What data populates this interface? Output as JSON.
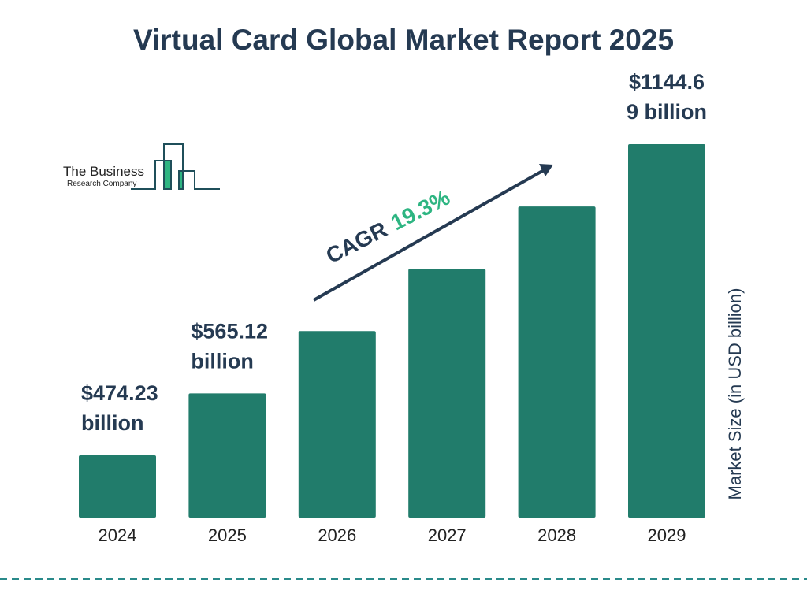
{
  "chart_data": {
    "type": "bar",
    "title": "Virtual Card Global Market Report 2025",
    "categories": [
      "2024",
      "2025",
      "2026",
      "2027",
      "2028",
      "2029"
    ],
    "values": [
      474.23,
      565.12,
      674.2,
      804.3,
      959.5,
      1144.69
    ],
    "data_labels": [
      [
        "$474.23",
        "billion"
      ],
      [
        "$565.12",
        "billion"
      ],
      null,
      null,
      null,
      [
        "$1144.6",
        "9 billion"
      ]
    ],
    "ylabel": "Market Size (in USD billion)",
    "xlabel": "",
    "scale": "log",
    "grid": false,
    "annotation": {
      "prefix": "CAGR",
      "value": "19.3%"
    },
    "colors": {
      "bar": "#217c6b",
      "text": "#253a52",
      "cagr": "#2eb582",
      "dash": "#2a8a8a"
    }
  },
  "logo": {
    "line1": "The Business",
    "line2": "Research Company"
  }
}
